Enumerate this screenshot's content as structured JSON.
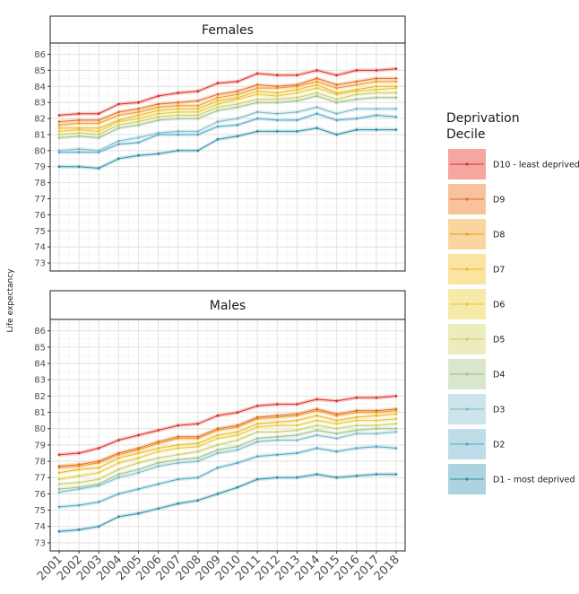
{
  "chart_data": {
    "type": "line",
    "ylabel": "Life expectancy",
    "x": [
      "2001",
      "2002",
      "2003",
      "2004",
      "2005",
      "2006",
      "2007",
      "2008",
      "2009",
      "2010",
      "2011",
      "2012",
      "2013",
      "2014",
      "2015",
      "2016",
      "2017",
      "2018"
    ],
    "ylim": [
      72.5,
      86.7
    ],
    "yticks": [
      73,
      74,
      75,
      76,
      77,
      78,
      79,
      80,
      81,
      82,
      83,
      84,
      85,
      86
    ],
    "legend": {
      "title_line1": "Deprivation",
      "title_line2": "Decile",
      "position": "right",
      "entries": [
        {
          "label": "D10 - least deprived",
          "color": "#d7302c",
          "ribbon": "#f6a6a1"
        },
        {
          "label": "D9",
          "color": "#e46b2b",
          "ribbon": "#f8c29c"
        },
        {
          "label": "D8",
          "color": "#e99a26",
          "ribbon": "#f9d69d"
        },
        {
          "label": "D7",
          "color": "#e9b824",
          "ribbon": "#fbe3a1"
        },
        {
          "label": "D6",
          "color": "#e2c840",
          "ribbon": "#f7eaa8"
        },
        {
          "label": "D5",
          "color": "#c7cc6b",
          "ribbon": "#ececbe"
        },
        {
          "label": "D4",
          "color": "#99c08f",
          "ribbon": "#d9e6cd"
        },
        {
          "label": "D3",
          "color": "#77b8c8",
          "ribbon": "#cde4ea"
        },
        {
          "label": "D2",
          "color": "#4ea8c4",
          "ribbon": "#bedde8"
        },
        {
          "label": "D1 - most deprived",
          "color": "#2b8fa8",
          "ribbon": "#acd3df"
        }
      ]
    },
    "panels": [
      {
        "title": "Females",
        "series": [
          {
            "name": "D10 - least deprived",
            "values": [
              82.2,
              82.3,
              82.3,
              82.9,
              83.0,
              83.4,
              83.6,
              83.7,
              84.2,
              84.3,
              84.8,
              84.7,
              84.7,
              85.0,
              84.7,
              85.0,
              85.0,
              85.1
            ]
          },
          {
            "name": "D9",
            "values": [
              81.8,
              81.9,
              81.9,
              82.4,
              82.6,
              82.9,
              83.0,
              83.1,
              83.5,
              83.7,
              84.1,
              84.0,
              84.1,
              84.5,
              84.1,
              84.3,
              84.5,
              84.5
            ]
          },
          {
            "name": "D8",
            "values": [
              81.6,
              81.7,
              81.7,
              82.2,
              82.4,
              82.7,
              82.8,
              82.8,
              83.3,
              83.5,
              83.9,
              83.9,
              84.0,
              84.3,
              83.9,
              84.1,
              84.3,
              84.3
            ]
          },
          {
            "name": "D7",
            "values": [
              81.4,
              81.4,
              81.4,
              81.9,
              82.2,
              82.5,
              82.6,
              82.6,
              83.1,
              83.3,
              83.7,
              83.6,
              83.8,
              84.1,
              83.6,
              83.8,
              84.0,
              84.0
            ]
          },
          {
            "name": "D6",
            "values": [
              81.2,
              81.3,
              81.2,
              81.8,
              82.0,
              82.3,
              82.4,
              82.4,
              82.9,
              83.2,
              83.5,
              83.4,
              83.6,
              83.9,
              83.5,
              83.7,
              83.8,
              83.9
            ]
          },
          {
            "name": "D5",
            "values": [
              81.0,
              81.1,
              81.0,
              81.6,
              81.8,
              82.1,
              82.2,
              82.2,
              82.7,
              82.9,
              83.2,
              83.2,
              83.3,
              83.6,
              83.2,
              83.5,
              83.6,
              83.6
            ]
          },
          {
            "name": "D4",
            "values": [
              80.8,
              80.9,
              80.8,
              81.4,
              81.6,
              81.9,
              82.0,
              82.0,
              82.5,
              82.7,
              83.0,
              83.0,
              83.1,
              83.4,
              83.0,
              83.2,
              83.3,
              83.3
            ]
          },
          {
            "name": "D3",
            "values": [
              80.0,
              80.1,
              80.0,
              80.6,
              80.8,
              81.1,
              81.2,
              81.2,
              81.8,
              82.0,
              82.4,
              82.3,
              82.4,
              82.7,
              82.3,
              82.6,
              82.6,
              82.6
            ]
          },
          {
            "name": "D2",
            "values": [
              79.9,
              79.9,
              79.9,
              80.4,
              80.5,
              81.0,
              81.0,
              81.0,
              81.5,
              81.6,
              82.0,
              81.9,
              81.9,
              82.3,
              81.9,
              82.0,
              82.2,
              82.1
            ]
          },
          {
            "name": "D1 - most deprived",
            "values": [
              79.0,
              79.0,
              78.9,
              79.5,
              79.7,
              79.8,
              80.0,
              80.0,
              80.7,
              80.9,
              81.2,
              81.2,
              81.2,
              81.4,
              81.0,
              81.3,
              81.3,
              81.3
            ]
          }
        ]
      },
      {
        "title": "Males",
        "series": [
          {
            "name": "D10 - least deprived",
            "values": [
              78.4,
              78.5,
              78.8,
              79.3,
              79.6,
              79.9,
              80.2,
              80.3,
              80.8,
              81.0,
              81.4,
              81.5,
              81.5,
              81.8,
              81.7,
              81.9,
              81.9,
              82.0
            ]
          },
          {
            "name": "D9",
            "values": [
              77.7,
              77.8,
              78.0,
              78.5,
              78.8,
              79.2,
              79.5,
              79.5,
              80.0,
              80.2,
              80.7,
              80.8,
              80.9,
              81.2,
              80.9,
              81.1,
              81.1,
              81.2
            ]
          },
          {
            "name": "D8",
            "values": [
              77.6,
              77.7,
              77.9,
              78.4,
              78.7,
              79.1,
              79.4,
              79.4,
              79.9,
              80.1,
              80.6,
              80.7,
              80.8,
              81.1,
              80.8,
              81.0,
              81.0,
              81.1
            ]
          },
          {
            "name": "D7",
            "values": [
              77.3,
              77.5,
              77.6,
              78.2,
              78.5,
              78.8,
              79.0,
              79.1,
              79.6,
              79.8,
              80.3,
              80.4,
              80.5,
              80.8,
              80.5,
              80.7,
              80.8,
              80.9
            ]
          },
          {
            "name": "D6",
            "values": [
              76.9,
              77.1,
              77.3,
              77.9,
              78.2,
              78.6,
              78.8,
              78.9,
              79.4,
              79.6,
              80.1,
              80.2,
              80.2,
              80.5,
              80.3,
              80.5,
              80.5,
              80.6
            ]
          },
          {
            "name": "D5",
            "values": [
              76.6,
              76.7,
              76.9,
              77.5,
              77.9,
              78.2,
              78.4,
              78.6,
              79.0,
              79.3,
              79.8,
              79.8,
              79.9,
              80.2,
              80.0,
              80.2,
              80.2,
              80.3
            ]
          },
          {
            "name": "D4",
            "values": [
              76.3,
              76.4,
              76.6,
              77.2,
              77.5,
              77.9,
              78.1,
              78.2,
              78.7,
              78.9,
              79.4,
              79.5,
              79.6,
              79.9,
              79.7,
              79.9,
              80.0,
              80.0
            ]
          },
          {
            "name": "D3",
            "values": [
              76.1,
              76.3,
              76.5,
              77.0,
              77.3,
              77.7,
              77.9,
              78.0,
              78.5,
              78.7,
              79.2,
              79.3,
              79.3,
              79.6,
              79.4,
              79.7,
              79.7,
              79.8
            ]
          },
          {
            "name": "D2",
            "values": [
              75.2,
              75.3,
              75.5,
              76.0,
              76.3,
              76.6,
              76.9,
              77.0,
              77.6,
              77.9,
              78.3,
              78.4,
              78.5,
              78.8,
              78.6,
              78.8,
              78.9,
              78.8
            ]
          },
          {
            "name": "D1 - most deprived",
            "values": [
              73.7,
              73.8,
              74.0,
              74.6,
              74.8,
              75.1,
              75.4,
              75.6,
              76.0,
              76.4,
              76.9,
              77.0,
              77.0,
              77.2,
              77.0,
              77.1,
              77.2,
              77.2
            ]
          }
        ]
      }
    ]
  }
}
